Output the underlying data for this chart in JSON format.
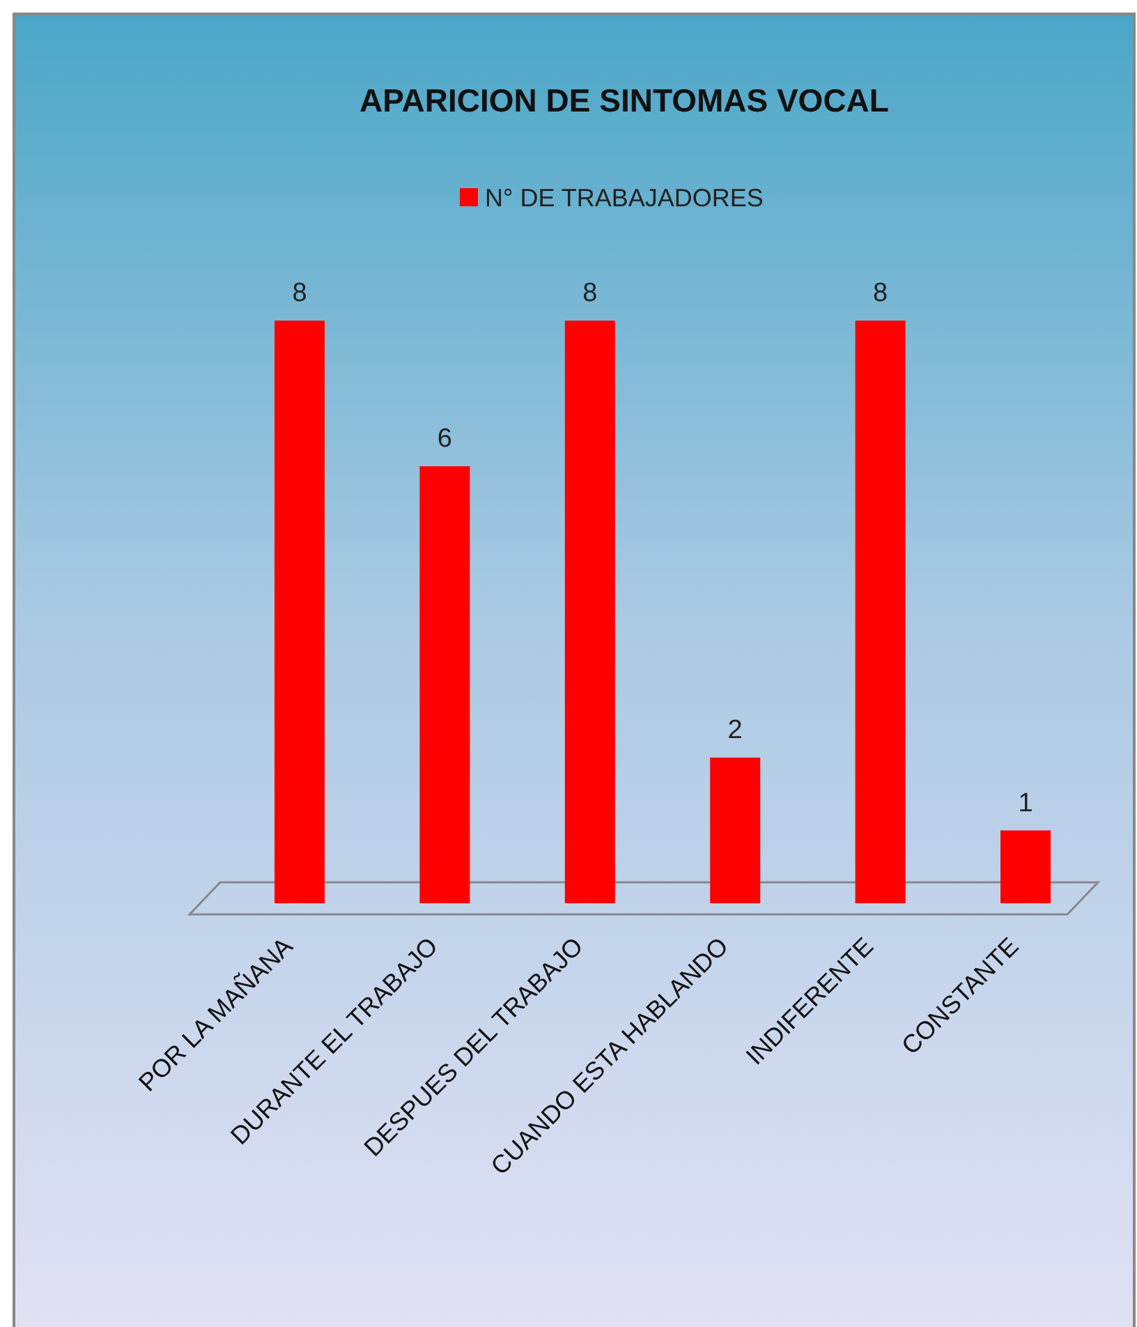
{
  "chart_data": {
    "type": "bar",
    "title": "APARICION DE SINTOMAS VOCAL",
    "categories": [
      "POR LA MAÑANA",
      "DURANTE EL TRABAJO",
      "DESPUES DEL TRABAJO",
      "CUANDO ESTA HABLANDO",
      "INDIFERENTE",
      "CONSTANTE"
    ],
    "series": [
      {
        "name": "N° DE TRABAJADORES",
        "color": "#ff0000",
        "values": [
          8,
          6,
          8,
          2,
          8,
          1
        ]
      }
    ],
    "data_labels": true,
    "legend": "top"
  }
}
